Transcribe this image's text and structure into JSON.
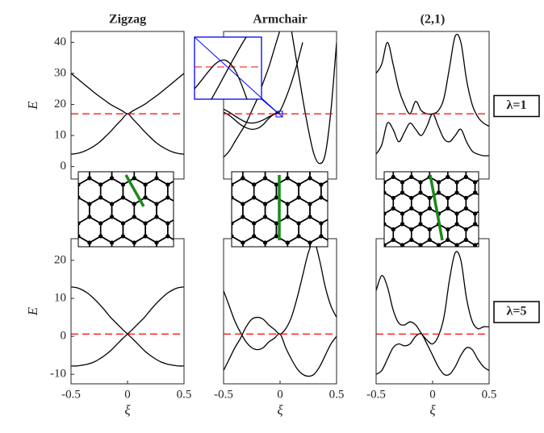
{
  "chart_data": [
    {
      "type": "line",
      "title": "Zigzag",
      "ylabel": "E",
      "x": [
        -0.5,
        -0.45,
        -0.4,
        -0.35,
        -0.3,
        -0.25,
        -0.2,
        -0.15,
        -0.1,
        -0.05,
        0,
        0.05,
        0.1,
        0.15,
        0.2,
        0.25,
        0.3,
        0.35,
        0.4,
        0.45,
        0.5
      ],
      "xlim": [
        -0.5,
        0.5
      ],
      "ylim": [
        -4,
        43.5
      ],
      "yticks": [
        0,
        10,
        20,
        30,
        40
      ],
      "hline": 17,
      "hline_color": "#ff0000",
      "series": [
        {
          "color": "#000000",
          "values": [
            30,
            28.5,
            27,
            25.5,
            24,
            22.6,
            21.3,
            20,
            19,
            18,
            17,
            18,
            19,
            20,
            21.3,
            22.6,
            24,
            25.5,
            27,
            28.5,
            30
          ]
        },
        {
          "color": "#000000",
          "values": [
            4,
            4.2,
            4.7,
            5.5,
            6.5,
            7.8,
            9.5,
            11.3,
            13.3,
            15.2,
            17,
            15.2,
            13.3,
            11.3,
            9.5,
            7.8,
            6.5,
            5.5,
            4.7,
            4.2,
            4
          ]
        }
      ]
    },
    {
      "type": "line",
      "title": "Armchair",
      "x": [
        -0.5,
        -0.45,
        -0.4,
        -0.35,
        -0.3,
        -0.25,
        -0.2,
        -0.15,
        -0.1,
        -0.05,
        0,
        0.05,
        0.1,
        0.15,
        0.2,
        0.25,
        0.3,
        0.35,
        0.4,
        0.45,
        0.5
      ],
      "xlim": [
        -0.5,
        0.5
      ],
      "ylim": [
        -4,
        43.5
      ],
      "hline": 17,
      "hline_color": "#ff0000",
      "series": [
        {
          "color": "#000000",
          "values": [
            3,
            5,
            8,
            11,
            14,
            18,
            22,
            27,
            32,
            38,
            44,
            null,
            null,
            null,
            null,
            null,
            null,
            null,
            null,
            null,
            null
          ]
        },
        {
          "color": "#000000",
          "values": [
            17.5,
            16.5,
            15,
            13.5,
            12.5,
            12,
            12.3,
            13.5,
            15.5,
            17,
            18,
            22,
            27,
            33,
            40,
            null,
            null,
            null,
            null,
            null,
            null
          ]
        },
        {
          "color": "#000000",
          "values": [
            18.5,
            17.5,
            16.3,
            15.2,
            14.3,
            14,
            14.3,
            15,
            16,
            16.8,
            17.3,
            null,
            null,
            null,
            null,
            null,
            null,
            null,
            null,
            null,
            null
          ]
        },
        {
          "color": "#000000",
          "values": [
            null,
            null,
            null,
            null,
            null,
            null,
            null,
            null,
            null,
            null,
            null,
            null,
            44,
            33,
            22,
            12,
            4,
            1,
            4,
            18,
            40
          ]
        }
      ]
    },
    {
      "type": "line",
      "title": "(2,1)",
      "annotation": "λ=1",
      "x": [
        -0.5,
        -0.45,
        -0.4,
        -0.35,
        -0.3,
        -0.25,
        -0.2,
        -0.15,
        -0.1,
        -0.05,
        0,
        0.05,
        0.1,
        0.15,
        0.2,
        0.25,
        0.3,
        0.35,
        0.4,
        0.45,
        0.5
      ],
      "xlim": [
        -0.5,
        0.5
      ],
      "ylim": [
        -4,
        43.5
      ],
      "hline": 17,
      "hline_color": "#ff0000",
      "series": [
        {
          "color": "#000000",
          "values": [
            30,
            33,
            40,
            33,
            25,
            20,
            17,
            21,
            18,
            17,
            17,
            18,
            22,
            32,
            42,
            40,
            28,
            20,
            16,
            14,
            13
          ]
        },
        {
          "color": "#000000",
          "values": [
            4,
            7,
            14,
            12,
            8,
            11,
            14,
            12,
            10,
            13,
            17,
            13,
            9,
            8,
            10,
            12,
            8,
            5,
            4,
            3.5,
            3.5
          ]
        }
      ]
    },
    {
      "type": "line",
      "xlabel": "ξ",
      "ylabel": "E",
      "x": [
        -0.5,
        -0.45,
        -0.4,
        -0.35,
        -0.3,
        -0.25,
        -0.2,
        -0.15,
        -0.1,
        -0.05,
        0,
        0.05,
        0.1,
        0.15,
        0.2,
        0.25,
        0.3,
        0.35,
        0.4,
        0.45,
        0.5
      ],
      "xlim": [
        -0.5,
        0.5
      ],
      "ylim": [
        -12.5,
        25.7
      ],
      "xticks": [
        -0.5,
        0,
        0.5
      ],
      "yticks": [
        -10,
        0,
        10,
        20
      ],
      "hline": 0.6,
      "hline_color": "#ff0000",
      "series": [
        {
          "color": "#000000",
          "values": [
            13,
            12.8,
            12.2,
            11.3,
            10,
            8.5,
            6.8,
            5,
            3.5,
            2,
            0.6,
            -0.8,
            -2.3,
            -3.8,
            -5,
            -6,
            -6.8,
            -7.3,
            -7.6,
            -7.8,
            -7.8
          ]
        },
        {
          "color": "#000000",
          "values": [
            -7.8,
            -7.8,
            -7.6,
            -7.3,
            -6.8,
            -6,
            -5,
            -3.8,
            -2.3,
            -0.8,
            0.6,
            2,
            3.5,
            5,
            6.8,
            8.5,
            10,
            11.3,
            12.2,
            12.8,
            13
          ]
        }
      ]
    },
    {
      "type": "line",
      "xlabel": "ξ",
      "x": [
        -0.5,
        -0.45,
        -0.4,
        -0.35,
        -0.3,
        -0.25,
        -0.2,
        -0.15,
        -0.1,
        -0.05,
        0,
        0.05,
        0.1,
        0.15,
        0.2,
        0.25,
        0.3,
        0.35,
        0.4,
        0.45,
        0.5
      ],
      "xlim": [
        -0.5,
        0.5
      ],
      "ylim": [
        -12.5,
        25.7
      ],
      "xticks": [
        -0.5,
        0,
        0.5
      ],
      "hline": 0.6,
      "hline_color": "#ff0000",
      "series": [
        {
          "color": "#000000",
          "values": [
            12,
            8,
            4,
            1,
            -1.5,
            -3,
            -3.5,
            -3,
            -1.5,
            -0.5,
            0.6,
            -3,
            -6,
            -8.5,
            -10,
            -10.5,
            -10,
            -8,
            -5,
            -2,
            0
          ]
        },
        {
          "color": "#000000",
          "values": [
            -9,
            -6,
            -3,
            -0.5,
            2.5,
            4.5,
            5,
            4.5,
            3,
            1.8,
            0.6,
            2,
            5,
            10,
            16,
            22,
            25,
            20,
            13,
            8,
            5
          ]
        }
      ]
    },
    {
      "type": "line",
      "xlabel": "ξ",
      "annotation": "λ=5",
      "x": [
        -0.5,
        -0.45,
        -0.4,
        -0.35,
        -0.3,
        -0.25,
        -0.2,
        -0.15,
        -0.1,
        -0.05,
        0,
        0.05,
        0.1,
        0.15,
        0.2,
        0.25,
        0.3,
        0.35,
        0.4,
        0.45,
        0.5
      ],
      "xlim": [
        -0.5,
        0.5
      ],
      "ylim": [
        -12.5,
        25.7
      ],
      "xticks": [
        -0.5,
        0,
        0.5
      ],
      "hline": 0.6,
      "hline_color": "#ff0000",
      "series": [
        {
          "color": "#000000",
          "values": [
            12,
            16,
            13,
            7,
            3.5,
            3,
            3.8,
            3,
            0.8,
            -1,
            -2,
            0,
            5,
            15,
            22,
            20,
            10,
            4,
            2,
            2.5,
            2.5
          ]
        },
        {
          "color": "#000000",
          "values": [
            -10,
            -9,
            -6,
            -3,
            -2,
            -2.5,
            -2,
            0,
            0.6,
            -2,
            -5,
            -8,
            -10,
            -10,
            -8,
            -5,
            -3,
            -3.5,
            -6,
            -8,
            -9
          ]
        }
      ]
    }
  ]
}
